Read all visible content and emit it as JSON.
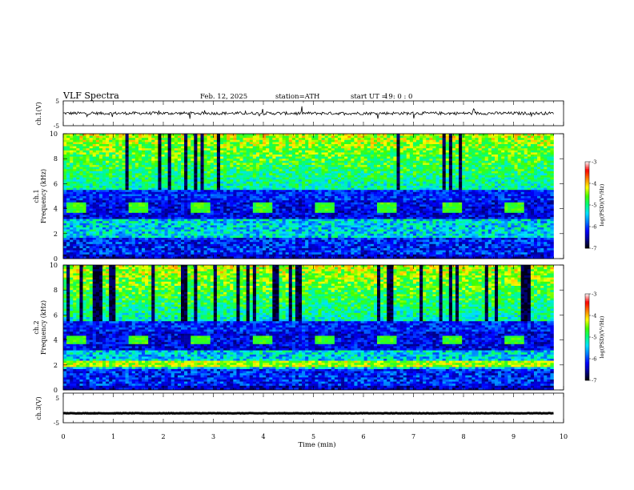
{
  "header": {
    "title": "VLF  Spectra",
    "date": "Feb. 12, 2025",
    "station": "station=ATH",
    "start_label": "start  UT  =",
    "start_time": "19: 0  : 0"
  },
  "colors": {
    "spectrogram_scale": [
      "#000000",
      "#00008c",
      "#0000ff",
      "#0078ff",
      "#00e0ff",
      "#00ff80",
      "#40ff00",
      "#ffff00",
      "#ff8000",
      "#ff0000",
      "#ffffff"
    ],
    "trace": "#000000",
    "background": "#ffffff"
  },
  "chart_data": [
    {
      "type": "line",
      "name": "ch1-waveform",
      "ylabel": "ch.1(V)",
      "xlim": [
        0,
        10
      ],
      "ylim": [
        -5,
        5
      ],
      "yticks": [
        "5",
        "-5"
      ],
      "baseline": 0.0,
      "noise_amplitude": 1.2
    },
    {
      "type": "heatmap",
      "name": "ch1-spectrogram",
      "ylabel": "ch.1\nFrequency  (kHz)",
      "xlim": [
        0,
        10
      ],
      "ylim": [
        0,
        10
      ],
      "yticks": [
        "0",
        "2",
        "4",
        "6",
        "8",
        "10"
      ],
      "colorbar": {
        "label": "log(PSD)(V²/Hz)",
        "range": [
          -7,
          -3
        ],
        "ticks": [
          "-3",
          "-4",
          "-5",
          "-6",
          "-7"
        ]
      },
      "periodic_blocks": {
        "freq_range": [
          3.7,
          4.5
        ],
        "centers_min": [
          0.25,
          1.5,
          2.75,
          4.0,
          5.25,
          6.45,
          7.75,
          9.0
        ],
        "width_min": 0.4
      }
    },
    {
      "type": "heatmap",
      "name": "ch2-spectrogram",
      "ylabel": "ch.2\nFrequency  (kHz)",
      "xlim": [
        0,
        10
      ],
      "ylim": [
        0,
        10
      ],
      "yticks": [
        "0",
        "2",
        "4",
        "6",
        "8",
        "10"
      ],
      "colorbar": {
        "label": "log(PSD)(V²/Hz)",
        "range": [
          -7,
          -3
        ],
        "ticks": [
          "-3",
          "-4",
          "-5",
          "-6",
          "-7"
        ]
      },
      "periodic_blocks": {
        "freq_range": [
          3.6,
          4.3
        ],
        "centers_min": [
          0.25,
          1.5,
          2.75,
          4.0,
          5.25,
          6.45,
          7.75,
          9.0
        ],
        "width_min": 0.4
      }
    },
    {
      "type": "line",
      "name": "ch3-waveform",
      "ylabel": "ch.3(V)",
      "xlim": [
        0,
        10
      ],
      "ylim": [
        -5,
        5
      ],
      "yticks": [
        "5",
        "-5"
      ],
      "baseline": -1.8,
      "noise_amplitude": 0.15
    }
  ],
  "xaxis": {
    "label": "Time  (min)",
    "ticks": [
      "0",
      "1",
      "2",
      "3",
      "4",
      "5",
      "6",
      "7",
      "8",
      "9",
      "10"
    ],
    "data_end_min": 9.8
  }
}
